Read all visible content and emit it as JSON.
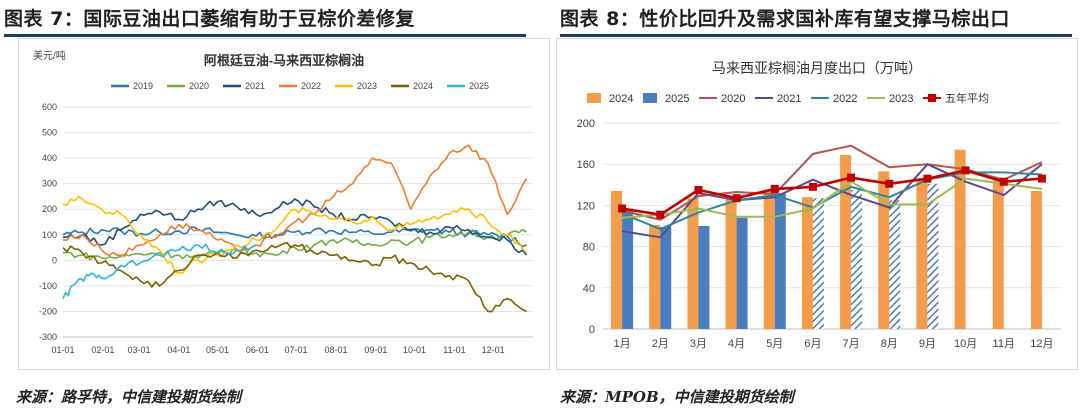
{
  "left": {
    "figure_title": "图表 7：国际豆油出口萎缩有助于豆棕价差修复",
    "source": "来源：路孚特，中信建投期货绘制"
  },
  "right": {
    "figure_title": "图表 8：性价比回升及需求国补库有望支撑马棕出口",
    "source": "来源：MPOB，中信建投期货绘制"
  },
  "chart_data": [
    {
      "type": "line",
      "title": "阿根廷豆油-马来西亚棕榈油",
      "ylabel": "美元/吨",
      "xlabel": "",
      "ylim": [
        -300,
        600
      ],
      "yticks": [
        -300,
        -200,
        -100,
        0,
        100,
        200,
        300,
        400,
        500,
        600
      ],
      "xlim": [
        0,
        365
      ],
      "xticks": [
        {
          "label": "01-01",
          "x": 0
        },
        {
          "label": "02-01",
          "x": 31
        },
        {
          "label": "03-01",
          "x": 59
        },
        {
          "label": "04-01",
          "x": 90
        },
        {
          "label": "05-01",
          "x": 120
        },
        {
          "label": "06-01",
          "x": 151
        },
        {
          "label": "07-01",
          "x": 181
        },
        {
          "label": "08-01",
          "x": 212
        },
        {
          "label": "09-01",
          "x": 243
        },
        {
          "label": "10-01",
          "x": 273
        },
        {
          "label": "11-01",
          "x": 304
        },
        {
          "label": "12-01",
          "x": 334
        }
      ],
      "grid": true,
      "legend_position": "top",
      "series": [
        {
          "name": "2019",
          "color": "#2e75b6",
          "x": [
            0,
            15,
            30,
            45,
            60,
            75,
            90,
            105,
            120,
            135,
            150,
            165,
            180,
            195,
            210,
            225,
            240,
            255,
            270,
            285,
            300,
            315,
            330,
            345,
            360
          ],
          "y": [
            100,
            110,
            120,
            115,
            105,
            110,
            115,
            120,
            110,
            100,
            95,
            100,
            110,
            120,
            115,
            110,
            105,
            110,
            115,
            120,
            110,
            105,
            100,
            95,
            60
          ]
        },
        {
          "name": "2020",
          "color": "#70ad47",
          "x": [
            0,
            15,
            30,
            45,
            60,
            75,
            90,
            105,
            120,
            135,
            150,
            165,
            180,
            195,
            210,
            225,
            240,
            255,
            270,
            285,
            300,
            315,
            330,
            345,
            360
          ],
          "y": [
            30,
            20,
            10,
            15,
            25,
            30,
            20,
            10,
            30,
            40,
            30,
            20,
            50,
            60,
            80,
            70,
            60,
            80,
            70,
            90,
            100,
            110,
            90,
            100,
            110
          ]
        },
        {
          "name": "2021",
          "color": "#1f4e79",
          "x": [
            0,
            15,
            30,
            45,
            60,
            75,
            90,
            105,
            120,
            135,
            150,
            165,
            180,
            195,
            210,
            225,
            240,
            255,
            270,
            285,
            300,
            315,
            330,
            345,
            360
          ],
          "y": [
            90,
            100,
            60,
            120,
            180,
            190,
            160,
            200,
            230,
            210,
            180,
            200,
            240,
            210,
            180,
            160,
            170,
            150,
            120,
            110,
            130,
            120,
            90,
            80,
            20
          ]
        },
        {
          "name": "2022",
          "color": "#ed7d31",
          "x": [
            0,
            15,
            30,
            45,
            60,
            75,
            90,
            105,
            120,
            135,
            150,
            165,
            180,
            195,
            210,
            225,
            240,
            255,
            270,
            285,
            300,
            315,
            330,
            345,
            360
          ],
          "y": [
            80,
            100,
            40,
            20,
            60,
            100,
            140,
            120,
            80,
            40,
            60,
            90,
            150,
            180,
            250,
            300,
            400,
            380,
            200,
            330,
            420,
            450,
            380,
            180,
            320
          ]
        },
        {
          "name": "2023",
          "color": "#ffc000",
          "x": [
            0,
            15,
            30,
            45,
            60,
            75,
            90,
            105,
            120,
            135,
            150,
            165,
            180,
            195,
            210,
            225,
            240,
            255,
            270,
            285,
            300,
            315,
            330,
            345,
            360
          ],
          "y": [
            220,
            240,
            200,
            180,
            100,
            40,
            -50,
            0,
            20,
            60,
            80,
            120,
            200,
            180,
            160,
            150,
            170,
            120,
            140,
            160,
            180,
            200,
            150,
            100,
            30
          ]
        },
        {
          "name": "2024",
          "color": "#7f6000",
          "x": [
            0,
            15,
            30,
            45,
            60,
            75,
            90,
            105,
            120,
            135,
            150,
            165,
            180,
            195,
            210,
            225,
            240,
            255,
            270,
            285,
            300,
            315,
            330,
            345,
            360
          ],
          "y": [
            50,
            30,
            -10,
            -40,
            -80,
            -100,
            -40,
            20,
            30,
            10,
            40,
            50,
            60,
            30,
            20,
            0,
            -20,
            10,
            -10,
            -40,
            -60,
            -80,
            -200,
            -150,
            -200
          ]
        },
        {
          "name": "2025",
          "color": "#2eb5d6",
          "x": [
            0,
            10,
            20,
            30,
            45,
            60,
            75,
            90,
            105,
            120,
            135,
            150
          ],
          "y": [
            -150,
            -90,
            -60,
            -70,
            -20,
            -10,
            20,
            40,
            60,
            30,
            40,
            60
          ]
        }
      ]
    },
    {
      "type": "bar",
      "title": "马来西亚棕榈油月度出口（万吨）",
      "ylabel": "",
      "xlabel": "",
      "ylim": [
        0,
        200
      ],
      "yticks": [
        0,
        40,
        80,
        120,
        160,
        200
      ],
      "categories": [
        "1月",
        "2月",
        "3月",
        "4月",
        "5月",
        "6月",
        "7月",
        "8月",
        "9月",
        "10月",
        "11月",
        "12月"
      ],
      "grid": true,
      "legend_position": "top",
      "bar_series": [
        {
          "name": "2024",
          "color": "#f59c4a",
          "values": [
            134,
            101,
            127,
            127,
            135,
            128,
            169,
            153,
            146,
            174,
            144,
            134
          ]
        },
        {
          "name": "2025",
          "color": "#4a7cc0",
          "values": [
            117,
            99,
            100,
            108,
            132,
            127,
            135,
            125,
            141,
            null,
            null,
            null
          ],
          "hatched_from_index": 5
        }
      ],
      "line_series": [
        {
          "name": "2020",
          "color": "#b85450",
          "values": [
            115,
            106,
            129,
            133,
            131,
            170,
            178,
            157,
            160,
            155,
            145,
            162
          ]
        },
        {
          "name": "2021",
          "color": "#5b4a8a",
          "values": [
            95,
            89,
            132,
            125,
            128,
            145,
            130,
            118,
            160,
            143,
            130,
            160
          ]
        },
        {
          "name": "2022",
          "color": "#31859c",
          "values": [
            112,
            97,
            113,
            125,
            130,
            118,
            138,
            128,
            145,
            152,
            152,
            150
          ]
        },
        {
          "name": "2023",
          "color": "#9bbb59",
          "values": [
            108,
            111,
            117,
            109,
            109,
            117,
            143,
            121,
            121,
            146,
            141,
            136
          ]
        },
        {
          "name": "五年平均",
          "color": "#c00000",
          "marker": "square",
          "values": [
            117,
            111,
            135,
            127,
            136,
            138,
            147,
            141,
            146,
            154,
            143,
            146
          ]
        }
      ]
    }
  ]
}
